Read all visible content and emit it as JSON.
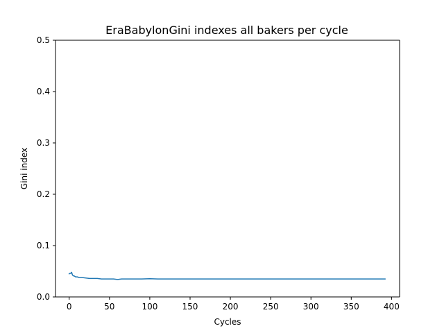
{
  "chart_data": {
    "type": "line",
    "title": "EraBabylonGini indexes all bakers per cycle",
    "xlabel": "Cycles",
    "ylabel": "Gini index",
    "xlim": [
      -17,
      410
    ],
    "ylim": [
      0,
      0.5
    ],
    "xticks": [
      0,
      50,
      100,
      150,
      200,
      250,
      300,
      350,
      400
    ],
    "xtick_labels": [
      "0",
      "50",
      "100",
      "150",
      "200",
      "250",
      "300",
      "350",
      "400"
    ],
    "yticks": [
      0.0,
      0.1,
      0.2,
      0.3,
      0.4,
      0.5
    ],
    "ytick_labels": [
      "0.0",
      "0.1",
      "0.2",
      "0.3",
      "0.4",
      "0.5"
    ],
    "grid": false,
    "series": [
      {
        "color": "#1f77b4",
        "x": [
          0,
          1,
          2,
          3,
          4,
          5,
          6,
          7,
          8,
          10,
          12,
          15,
          20,
          25,
          30,
          35,
          40,
          45,
          50,
          55,
          60,
          65,
          70,
          80,
          90,
          100,
          110,
          120,
          130,
          140,
          150,
          160,
          170,
          180,
          190,
          200,
          220,
          250,
          280,
          300,
          320,
          350,
          370,
          392
        ],
        "y": [
          0.045,
          0.046,
          0.046,
          0.048,
          0.043,
          0.041,
          0.041,
          0.04,
          0.039,
          0.039,
          0.038,
          0.038,
          0.037,
          0.036,
          0.036,
          0.036,
          0.035,
          0.035,
          0.035,
          0.035,
          0.034,
          0.035,
          0.035,
          0.035,
          0.035,
          0.0355,
          0.035,
          0.035,
          0.035,
          0.035,
          0.035,
          0.035,
          0.035,
          0.035,
          0.035,
          0.035,
          0.035,
          0.035,
          0.035,
          0.035,
          0.035,
          0.035,
          0.035,
          0.035
        ]
      }
    ]
  }
}
